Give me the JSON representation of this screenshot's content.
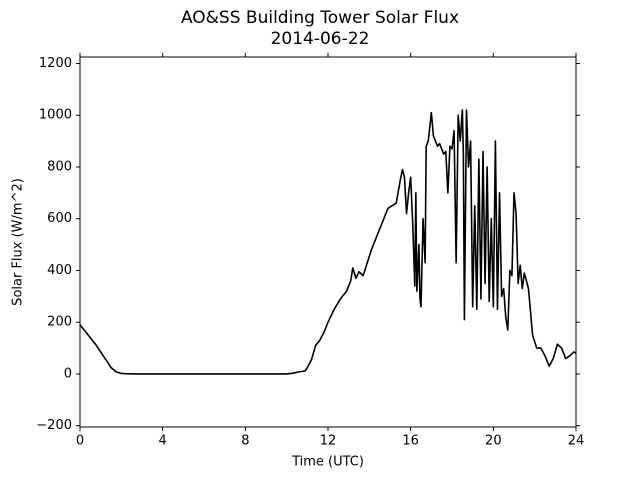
{
  "chart_data": {
    "type": "line",
    "title": "AO&SS Building Tower Solar Flux",
    "subtitle": "2014-06-22",
    "x_label": "Time (UTC)",
    "y_label": "Solar Flux (W/m^2)",
    "x": [
      0,
      0.25,
      0.5,
      0.75,
      1,
      1.25,
      1.5,
      1.75,
      2,
      2.5,
      4,
      6,
      8,
      10,
      10.3,
      10.6,
      10.9,
      11,
      11.2,
      11.4,
      11.6,
      11.8,
      12,
      12.3,
      12.6,
      12.9,
      13.1,
      13.2,
      13.35,
      13.5,
      13.7,
      13.9,
      14.1,
      14.3,
      14.5,
      14.7,
      14.9,
      15.1,
      15.3,
      15.5,
      15.6,
      15.7,
      15.8,
      15.9,
      16,
      16.1,
      16.2,
      16.25,
      16.3,
      16.4,
      16.45,
      16.5,
      16.6,
      16.7,
      16.75,
      16.85,
      17,
      17.1,
      17.3,
      17.4,
      17.6,
      17.7,
      17.8,
      17.9,
      18,
      18.1,
      18.2,
      18.3,
      18.4,
      18.5,
      18.55,
      18.6,
      18.7,
      18.8,
      18.9,
      19,
      19.1,
      19.2,
      19.3,
      19.4,
      19.5,
      19.6,
      19.7,
      19.8,
      19.9,
      20,
      20.1,
      20.2,
      20.3,
      20.4,
      20.5,
      20.6,
      20.7,
      20.8,
      20.9,
      21,
      21.1,
      21.2,
      21.3,
      21.4,
      21.5,
      21.7,
      21.9,
      22.1,
      22.3,
      22.5,
      22.7,
      22.9,
      23.1,
      23.3,
      23.5,
      23.7,
      23.9,
      24
    ],
    "series": [
      {
        "name": "Solar Flux",
        "color": "#000000",
        "values": [
          190,
          165,
          140,
          115,
          85,
          55,
          25,
          8,
          2,
          0,
          0,
          0,
          0,
          0,
          3,
          8,
          12,
          25,
          55,
          110,
          130,
          160,
          200,
          250,
          290,
          320,
          360,
          410,
          370,
          395,
          380,
          430,
          480,
          520,
          560,
          600,
          640,
          650,
          660,
          750,
          790,
          760,
          620,
          700,
          760,
          580,
          340,
          700,
          320,
          500,
          290,
          260,
          600,
          430,
          880,
          900,
          1010,
          920,
          880,
          890,
          850,
          860,
          700,
          880,
          870,
          940,
          430,
          1000,
          900,
          1020,
          850,
          210,
          1020,
          800,
          900,
          260,
          650,
          250,
          830,
          290,
          860,
          350,
          800,
          280,
          600,
          260,
          900,
          250,
          700,
          300,
          330,
          220,
          170,
          400,
          380,
          700,
          620,
          350,
          420,
          330,
          390,
          330,
          150,
          100,
          100,
          70,
          30,
          60,
          115,
          100,
          60,
          70,
          85,
          80
        ]
      }
    ],
    "xlim": [
      0,
      24
    ],
    "xticks": [
      0,
      4,
      8,
      12,
      16,
      20,
      24
    ],
    "ylim": [
      -205,
      1225
    ],
    "yticks": [
      {
        "value": -200,
        "label": "−200"
      },
      0,
      200,
      400,
      600,
      800,
      1000,
      1200
    ]
  }
}
